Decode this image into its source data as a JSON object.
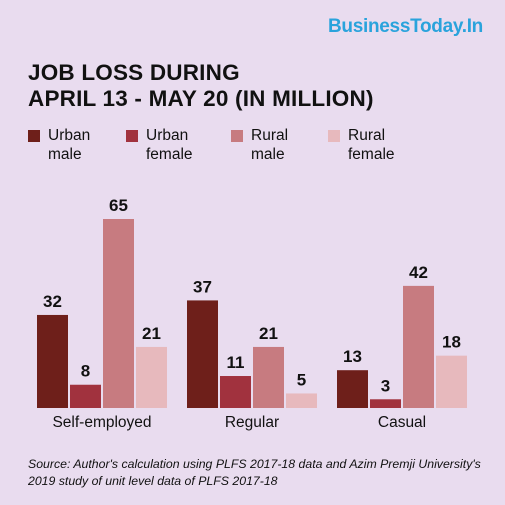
{
  "brand": "BusinessToday.In",
  "title_line1": "JOB LOSS DURING",
  "title_line2": "APRIL 13 - MAY 20 (IN MILLION)",
  "source_text": "Source: Author's calculation using PLFS 2017-18 data and Azim Premji University's 2019 study of unit level data of PLFS 2017-18",
  "legend": [
    {
      "line1": "Urban",
      "line2": "male",
      "color": "#6e1f1a"
    },
    {
      "line1": "Urban",
      "line2": "female",
      "color": "#a1323e"
    },
    {
      "line1": "Rural",
      "line2": "male",
      "color": "#c77b80"
    },
    {
      "line1": "Rural",
      "line2": "female",
      "color": "#e7b9bd"
    }
  ],
  "chart_data": {
    "type": "bar",
    "title": "JOB LOSS DURING APRIL 13 - MAY 20 (IN MILLION)",
    "categories": [
      "Self-employed",
      "Regular",
      "Casual"
    ],
    "series": [
      {
        "name": "Urban male",
        "color": "#6e1f1a",
        "values": [
          32,
          37,
          13
        ]
      },
      {
        "name": "Urban female",
        "color": "#a1323e",
        "values": [
          8,
          11,
          3
        ]
      },
      {
        "name": "Rural male",
        "color": "#c77b80",
        "values": [
          65,
          21,
          42
        ]
      },
      {
        "name": "Rural female",
        "color": "#e7b9bd",
        "values": [
          21,
          5,
          18
        ]
      }
    ],
    "ylim": [
      0,
      65
    ],
    "grid": false,
    "legend_position": "top"
  }
}
